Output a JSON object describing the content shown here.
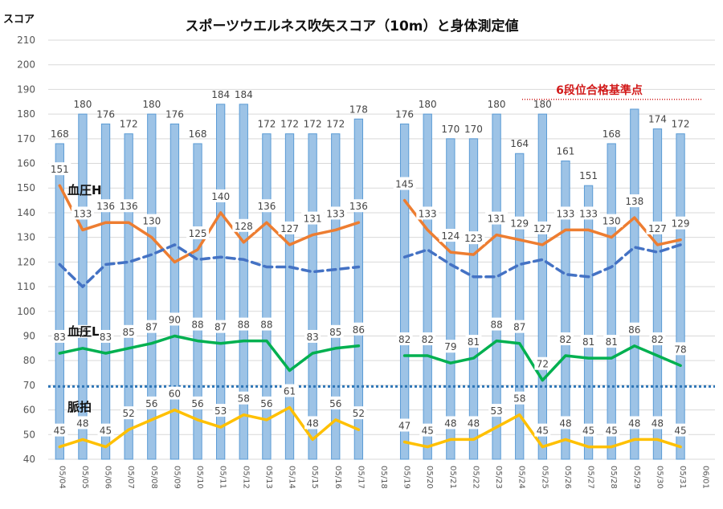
{
  "chart_data": {
    "type": "bar",
    "title": "スポーツウエルネス吹矢スコア（10m）と身体測定値",
    "ylabel": "スコア",
    "ylim": [
      40,
      210
    ],
    "yticks": [
      40,
      50,
      60,
      70,
      80,
      90,
      100,
      110,
      120,
      130,
      140,
      150,
      160,
      170,
      180,
      190,
      200,
      210
    ],
    "grid": true,
    "categories": [
      "05/04",
      "05/05",
      "05/06",
      "05/07",
      "05/08",
      "05/09",
      "05/10",
      "05/11",
      "05/12",
      "05/13",
      "05/14",
      "05/15",
      "05/16",
      "05/17",
      "05/18",
      "05/19",
      "05/20",
      "05/21",
      "05/22",
      "05/23",
      "05/24",
      "05/25",
      "05/26",
      "05/27",
      "05/28",
      "05/29",
      "05/30",
      "05/31",
      "06/01"
    ],
    "series": [
      {
        "type": "bar",
        "values": [
          168,
          180,
          176,
          172,
          180,
          176,
          168,
          184,
          184,
          172,
          172,
          172,
          172,
          178,
          null,
          176,
          180,
          170,
          170,
          180,
          164,
          180,
          161,
          151,
          168,
          182,
          174,
          172,
          null
        ],
        "labels": [
          "168",
          "180",
          "176",
          "172",
          "180",
          "176",
          "168",
          "184",
          "184",
          "172",
          "172",
          "172",
          "172",
          "178",
          "",
          "176",
          "180",
          "170",
          "170",
          "180",
          "164",
          "180",
          "161",
          "151",
          "168",
          "",
          "174",
          "172",
          ""
        ],
        "color": "#9dc3e6"
      },
      {
        "name": "血圧H",
        "type": "line",
        "values": [
          151,
          133,
          136,
          136,
          130,
          120,
          125,
          140,
          128,
          136,
          127,
          131,
          133,
          136,
          null,
          145,
          133,
          124,
          123,
          131,
          129,
          127,
          133,
          133,
          130,
          138,
          127,
          129,
          null
        ],
        "labels": [
          "151",
          "133",
          "136",
          "136",
          "130",
          "",
          "125",
          "140",
          "128",
          "136",
          "127",
          "131",
          "133",
          "136",
          "",
          "145",
          "133",
          "124",
          "123",
          "131",
          "129",
          "127",
          "133",
          "133",
          "130",
          "138",
          "127",
          "129",
          ""
        ],
        "color": "#ed7d31"
      },
      {
        "type": "line",
        "dashed": true,
        "values": [
          119,
          110,
          119,
          120,
          123,
          127,
          121,
          122,
          121,
          118,
          118,
          116,
          117,
          118,
          null,
          122,
          125,
          119,
          114,
          114,
          119,
          121,
          115,
          114,
          118,
          126,
          124,
          127,
          null
        ],
        "color": "#4472c4"
      },
      {
        "name": "血圧L",
        "type": "line",
        "values": [
          83,
          85,
          83,
          85,
          87,
          90,
          88,
          87,
          88,
          88,
          76,
          83,
          85,
          86,
          null,
          82,
          82,
          79,
          81,
          88,
          87,
          72,
          82,
          81,
          81,
          86,
          82,
          78,
          null
        ],
        "labels": [
          "83",
          "85",
          "83",
          "85",
          "87",
          "90",
          "88",
          "87",
          "88",
          "88",
          "",
          "83",
          "85",
          "86",
          "",
          "82",
          "82",
          "79",
          "81",
          "88",
          "87",
          "72",
          "82",
          "81",
          "81",
          "86",
          "82",
          "78",
          ""
        ],
        "color": "#00b050"
      },
      {
        "name": "脈拍",
        "type": "line",
        "values": [
          45,
          48,
          45,
          52,
          56,
          60,
          56,
          53,
          58,
          56,
          61,
          48,
          56,
          52,
          null,
          47,
          45,
          48,
          48,
          53,
          58,
          45,
          48,
          45,
          45,
          48,
          48,
          45,
          null
        ],
        "labels": [
          "45",
          "48",
          "45",
          "52",
          "56",
          "60",
          "56",
          "53",
          "58",
          "56",
          "61",
          "48",
          "56",
          "52",
          "",
          "47",
          "45",
          "48",
          "48",
          "53",
          "58",
          "45",
          "48",
          "45",
          "45",
          "48",
          "48",
          "45",
          ""
        ],
        "color": "#ffc000"
      }
    ],
    "reference_lines": [
      {
        "label": "6段位合格基準点",
        "value": 186,
        "color": "#d21a1a",
        "style": "dotted"
      },
      {
        "value": 69.5,
        "color": "#2e75b6",
        "style": "dotted"
      }
    ]
  }
}
